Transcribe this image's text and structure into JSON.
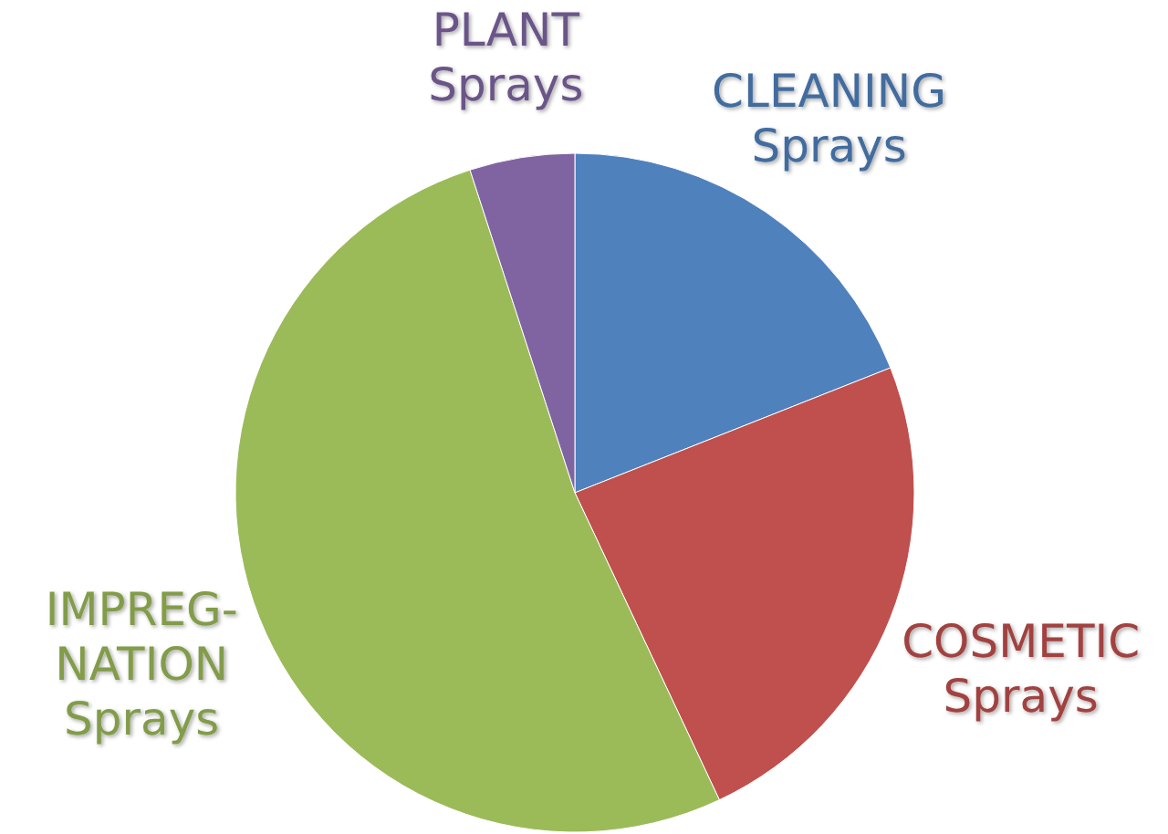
{
  "chart_data": {
    "type": "pie",
    "categories": [
      "CLEANING\nSprays",
      "COSMETIC\nSprays",
      "IMPREG-\nNATION\nSprays",
      "PLANT\nSprays"
    ],
    "values": [
      19,
      24,
      52,
      5
    ],
    "colors": [
      "#4f81bd",
      "#c0504d",
      "#9bbb59",
      "#8064a2"
    ]
  }
}
